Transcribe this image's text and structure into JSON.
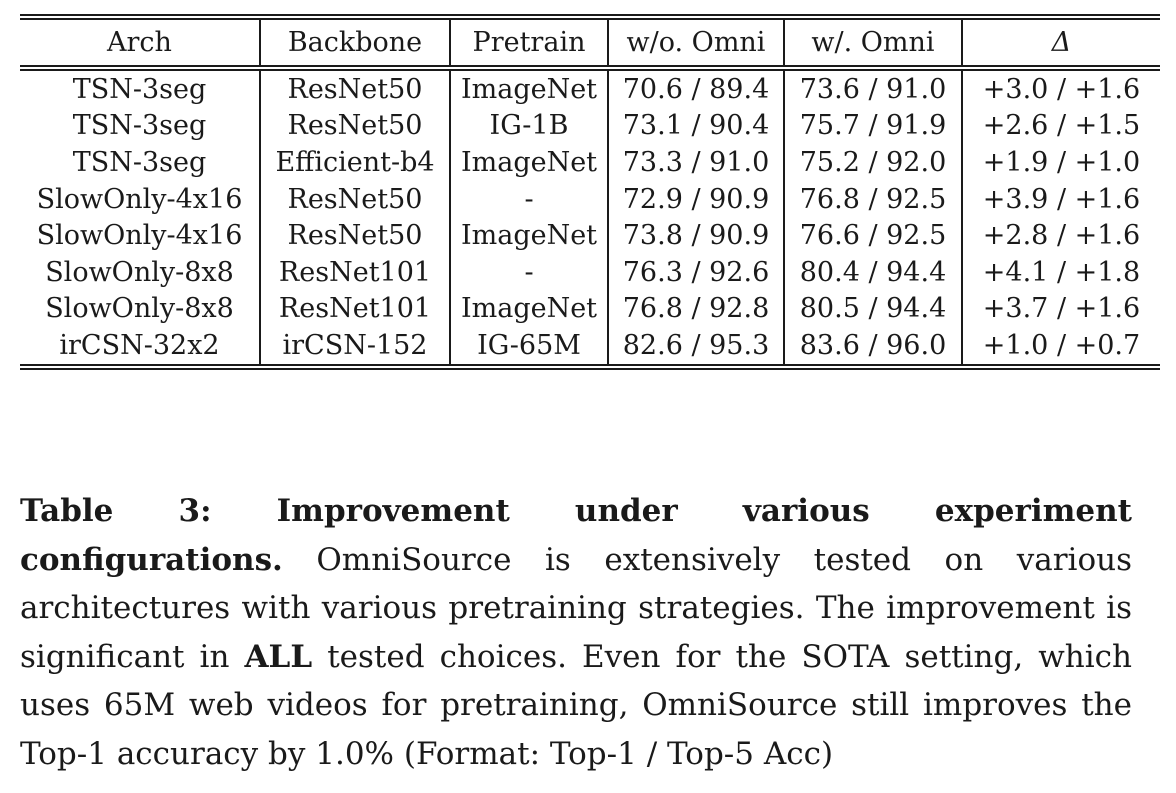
{
  "table": {
    "headers": [
      "Arch",
      "Backbone",
      "Pretrain",
      "w/o. Omni",
      "w/. Omni",
      "Δ"
    ],
    "rows": [
      [
        "TSN-3seg",
        "ResNet50",
        "ImageNet",
        "70.6 / 89.4",
        "73.6 / 91.0",
        "+3.0 / +1.6"
      ],
      [
        "TSN-3seg",
        "ResNet50",
        "IG-1B",
        "73.1 / 90.4",
        "75.7 / 91.9",
        "+2.6 / +1.5"
      ],
      [
        "TSN-3seg",
        "Efficient-b4",
        "ImageNet",
        "73.3 / 91.0",
        "75.2 / 92.0",
        "+1.9 / +1.0"
      ],
      [
        "SlowOnly-4x16",
        "ResNet50",
        "-",
        "72.9 / 90.9",
        "76.8 / 92.5",
        "+3.9 / +1.6"
      ],
      [
        "SlowOnly-4x16",
        "ResNet50",
        "ImageNet",
        "73.8 / 90.9",
        "76.6 / 92.5",
        "+2.8 / +1.6"
      ],
      [
        "SlowOnly-8x8",
        "ResNet101",
        "-",
        "76.3 / 92.6",
        "80.4 / 94.4",
        "+4.1 / +1.8"
      ],
      [
        "SlowOnly-8x8",
        "ResNet101",
        "ImageNet",
        "76.8 / 92.8",
        "80.5 / 94.4",
        "+3.7 / +1.6"
      ],
      [
        "irCSN-32x2",
        "irCSN-152",
        "IG-65M",
        "82.6 / 95.3",
        "83.6 / 96.0",
        "+1.0 / +0.7"
      ]
    ]
  },
  "caption": {
    "label": "Table 3: Improvement under various experiment configurations.",
    "text_1": " OmniSource is extensively tested on various architectures with various pretraining strategies. The improvement is significant in ",
    "emphasis": "ALL",
    "text_2": " tested choices. Even for the SOTA setting, which uses 65M web videos for pretraining, OmniSource still improves the Top-1 accuracy by 1.0% (Format: Top-1 / Top-5 Acc)"
  }
}
